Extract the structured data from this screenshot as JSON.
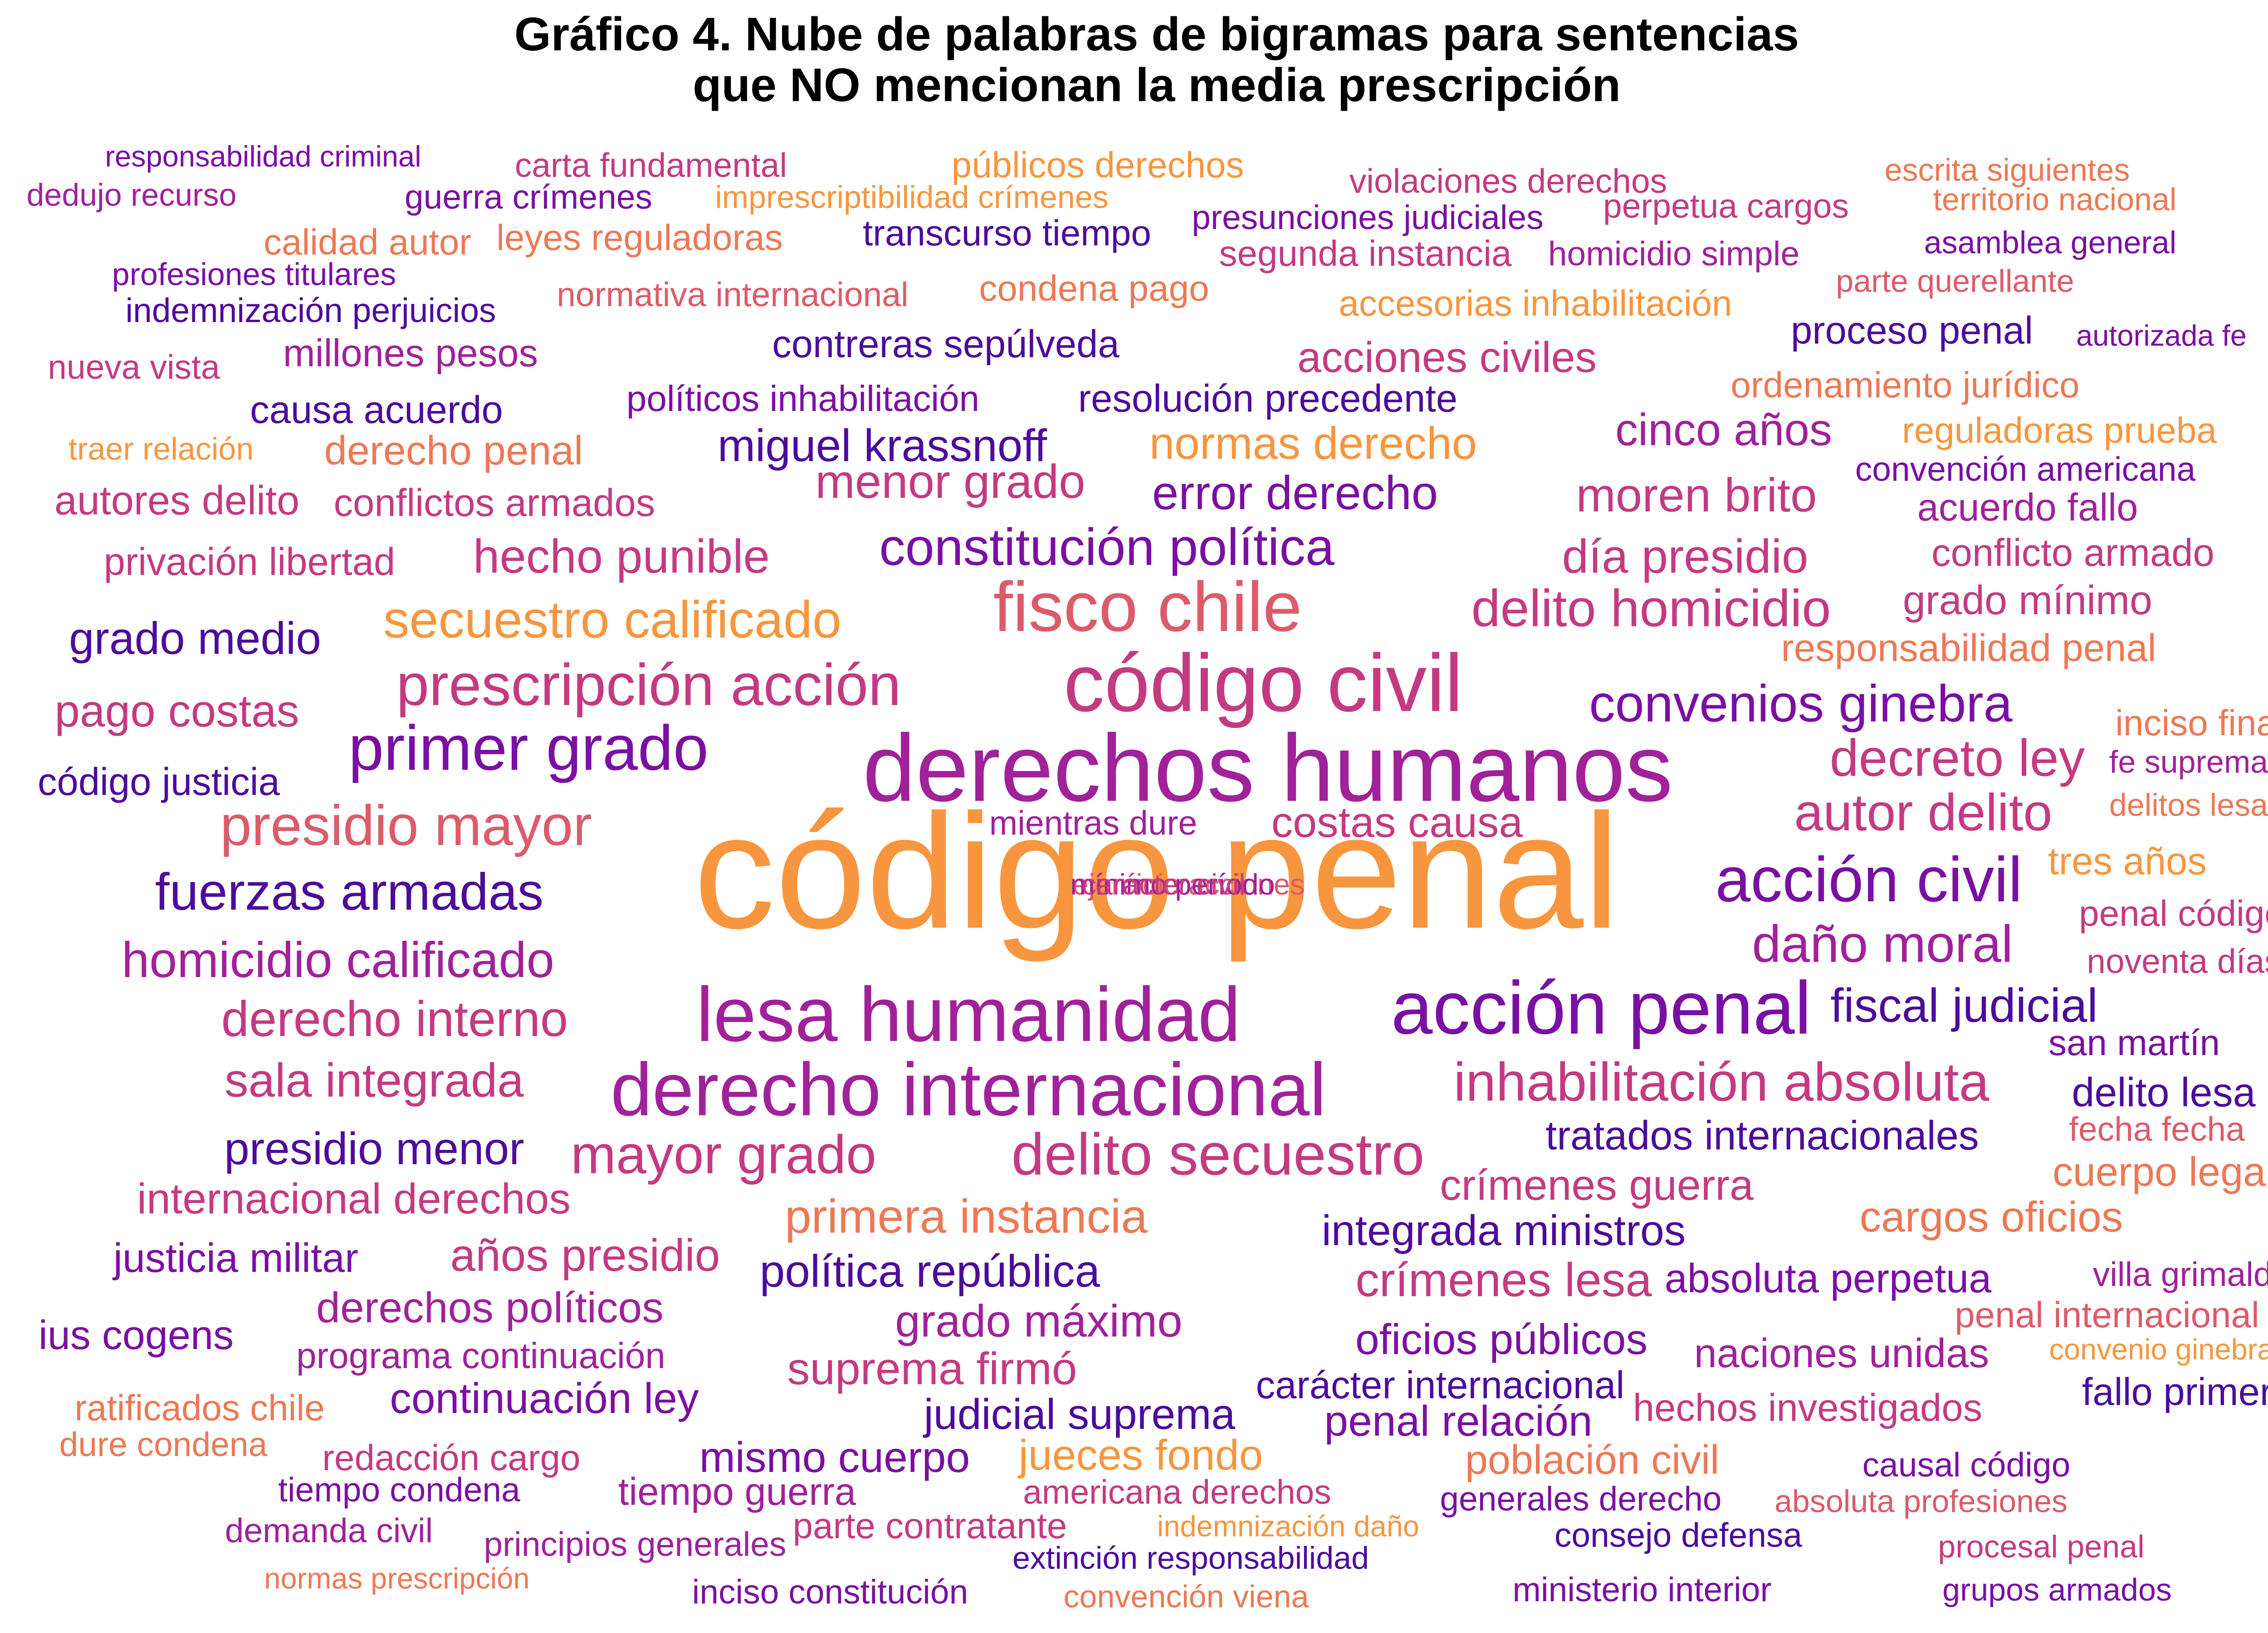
{
  "chart_data": {
    "type": "wordcloud",
    "title": [
      "Gráfico 4. Nube de palabras de bigramas para sentencias",
      "que NO mencionan la media prescripción"
    ],
    "colors": {
      "purple": "#4b0c9b",
      "violet": "#7a0fa3",
      "magenta": "#a0219a",
      "pink": "#c43a80",
      "rose": "#dc5b6a",
      "salmon": "#ec7954",
      "orange": "#f7963e",
      "title": "#000000",
      "background": "#ffffff"
    },
    "words": [
      {
        "text": "código penal",
        "c": "orange"
      },
      {
        "text": "derechos humanos",
        "c": "magenta"
      },
      {
        "text": "código civil",
        "c": "pink"
      },
      {
        "text": "lesa humanidad",
        "c": "magenta"
      },
      {
        "text": "acción penal",
        "c": "violet"
      },
      {
        "text": "derecho internacional",
        "c": "magenta"
      },
      {
        "text": "fisco chile",
        "c": "rose"
      },
      {
        "text": "prescripción acción",
        "c": "pink"
      },
      {
        "text": "primer grado",
        "c": "violet"
      },
      {
        "text": "presidio mayor",
        "c": "rose"
      },
      {
        "text": "delito secuestro",
        "c": "pink"
      },
      {
        "text": "acción civil",
        "c": "violet"
      },
      {
        "text": "mayor grado",
        "c": "pink"
      },
      {
        "text": "secuestro calificado",
        "c": "orange"
      },
      {
        "text": "inhabilitación absoluta",
        "c": "pink"
      },
      {
        "text": "fuerzas armadas",
        "c": "purple"
      },
      {
        "text": "constitución política",
        "c": "violet"
      },
      {
        "text": "delito homicidio",
        "c": "pink"
      },
      {
        "text": "convenios ginebra",
        "c": "violet"
      },
      {
        "text": "daño moral",
        "c": "magenta"
      },
      {
        "text": "decreto ley",
        "c": "pink"
      },
      {
        "text": "autor delito",
        "c": "pink"
      },
      {
        "text": "homicidio calificado",
        "c": "magenta"
      },
      {
        "text": "derecho interno",
        "c": "pink"
      },
      {
        "text": "primera instancia",
        "c": "salmon"
      },
      {
        "text": "error derecho",
        "c": "violet"
      },
      {
        "text": "moren brito",
        "c": "pink"
      },
      {
        "text": "día presidio",
        "c": "pink"
      },
      {
        "text": "menor grado",
        "c": "pink"
      },
      {
        "text": "hecho punible",
        "c": "pink"
      },
      {
        "text": "sala integrada",
        "c": "pink"
      },
      {
        "text": "presidio menor",
        "c": "purple"
      },
      {
        "text": "fiscal judicial",
        "c": "purple"
      },
      {
        "text": "política república",
        "c": "purple"
      },
      {
        "text": "integrada ministros",
        "c": "purple"
      },
      {
        "text": "crímenes lesa",
        "c": "pink"
      },
      {
        "text": "costas causa",
        "c": "pink"
      },
      {
        "text": "normas derecho",
        "c": "orange"
      },
      {
        "text": "miguel krassnoff",
        "c": "purple"
      },
      {
        "text": "cinco años",
        "c": "magenta"
      },
      {
        "text": "grado máximo",
        "c": "magenta"
      },
      {
        "text": "tratados internacionales",
        "c": "purple"
      },
      {
        "text": "crímenes guerra",
        "c": "pink"
      },
      {
        "text": "cargos oficios",
        "c": "salmon"
      },
      {
        "text": "pago costas",
        "c": "pink"
      },
      {
        "text": "grado medio",
        "c": "purple"
      },
      {
        "text": "internacional derechos",
        "c": "pink"
      },
      {
        "text": "años presidio",
        "c": "pink"
      },
      {
        "text": "justicia militar",
        "c": "violet"
      },
      {
        "text": "suprema firmó",
        "c": "pink"
      },
      {
        "text": "oficios públicos",
        "c": "violet"
      },
      {
        "text": "absoluta perpetua",
        "c": "violet"
      },
      {
        "text": "naciones unidas",
        "c": "magenta"
      },
      {
        "text": "cuerpo legal",
        "c": "salmon"
      },
      {
        "text": "delito lesa",
        "c": "purple"
      },
      {
        "text": "san martín",
        "c": "violet"
      },
      {
        "text": "grado mínimo",
        "c": "pink"
      },
      {
        "text": "responsabilidad penal",
        "c": "salmon"
      },
      {
        "text": "conflicto armado",
        "c": "pink"
      },
      {
        "text": "acuerdo fallo",
        "c": "magenta"
      },
      {
        "text": "convención americana",
        "c": "violet"
      },
      {
        "text": "acciones civiles",
        "c": "pink"
      },
      {
        "text": "resolución precedente",
        "c": "purple"
      },
      {
        "text": "políticos inhabilitación",
        "c": "violet"
      },
      {
        "text": "derecho penal",
        "c": "salmon"
      },
      {
        "text": "conflictos armados",
        "c": "pink"
      },
      {
        "text": "autores delito",
        "c": "pink"
      },
      {
        "text": "privación libertad",
        "c": "pink"
      },
      {
        "text": "causa acuerdo",
        "c": "purple"
      },
      {
        "text": "código justicia",
        "c": "purple"
      },
      {
        "text": "mientras dure",
        "c": "magenta"
      },
      {
        "text": "derechos políticos",
        "c": "magenta"
      },
      {
        "text": "programa continuación",
        "c": "magenta"
      },
      {
        "text": "continuación ley",
        "c": "violet"
      },
      {
        "text": "judicial suprema",
        "c": "purple"
      },
      {
        "text": "mismo cuerpo",
        "c": "violet"
      },
      {
        "text": "jueces fondo",
        "c": "orange"
      },
      {
        "text": "carácter internacional",
        "c": "purple"
      },
      {
        "text": "penal relación",
        "c": "violet"
      },
      {
        "text": "hechos investigados",
        "c": "pink"
      },
      {
        "text": "población civil",
        "c": "salmon"
      },
      {
        "text": "fallo primer",
        "c": "purple"
      },
      {
        "text": "villa grimaldi",
        "c": "magenta"
      },
      {
        "text": "penal internacional",
        "c": "rose"
      },
      {
        "text": "convenio ginebra",
        "c": "orange"
      },
      {
        "text": "fecha fecha",
        "c": "rose"
      },
      {
        "text": "noventa días",
        "c": "pink"
      },
      {
        "text": "penal código",
        "c": "pink"
      },
      {
        "text": "tres años",
        "c": "orange"
      },
      {
        "text": "delitos lesa",
        "c": "salmon"
      },
      {
        "text": "fe suprema",
        "c": "magenta"
      },
      {
        "text": "inciso final",
        "c": "salmon"
      },
      {
        "text": "ius cogens",
        "c": "violet"
      },
      {
        "text": "ratificados chile",
        "c": "salmon"
      },
      {
        "text": "dure condena",
        "c": "salmon"
      },
      {
        "text": "redacción cargo",
        "c": "pink"
      },
      {
        "text": "tiempo condena",
        "c": "violet"
      },
      {
        "text": "tiempo guerra",
        "c": "magenta"
      },
      {
        "text": "americana derechos",
        "c": "pink"
      },
      {
        "text": "generales derecho",
        "c": "violet"
      },
      {
        "text": "causal código",
        "c": "violet"
      },
      {
        "text": "absoluta profesiones",
        "c": "rose"
      },
      {
        "text": "demanda civil",
        "c": "magenta"
      },
      {
        "text": "principios generales",
        "c": "magenta"
      },
      {
        "text": "parte contratante",
        "c": "pink"
      },
      {
        "text": "indemnización daño",
        "c": "orange"
      },
      {
        "text": "consejo defensa",
        "c": "purple"
      },
      {
        "text": "procesal penal",
        "c": "pink"
      },
      {
        "text": "extinción responsabilidad",
        "c": "purple"
      },
      {
        "text": "normas prescripción",
        "c": "salmon"
      },
      {
        "text": "inciso constitución",
        "c": "violet"
      },
      {
        "text": "convención viena",
        "c": "salmon"
      },
      {
        "text": "ministerio interior",
        "c": "violet"
      },
      {
        "text": "grupos armados",
        "c": "violet"
      },
      {
        "text": "responsabilidad criminal",
        "c": "violet"
      },
      {
        "text": "carta fundamental",
        "c": "pink"
      },
      {
        "text": "públicos derechos",
        "c": "orange"
      },
      {
        "text": "violaciones derechos",
        "c": "pink"
      },
      {
        "text": "escrita siguientes",
        "c": "salmon"
      },
      {
        "text": "dedujo recurso",
        "c": "magenta"
      },
      {
        "text": "guerra crímenes",
        "c": "violet"
      },
      {
        "text": "imprescriptibilidad crímenes",
        "c": "orange"
      },
      {
        "text": "perpetua cargos",
        "c": "pink"
      },
      {
        "text": "territorio nacional",
        "c": "salmon"
      },
      {
        "text": "calidad autor",
        "c": "salmon"
      },
      {
        "text": "leyes reguladoras",
        "c": "salmon"
      },
      {
        "text": "transcurso tiempo",
        "c": "purple"
      },
      {
        "text": "presunciones judiciales",
        "c": "violet"
      },
      {
        "text": "asamblea general",
        "c": "violet"
      },
      {
        "text": "segunda instancia",
        "c": "pink"
      },
      {
        "text": "homicidio simple",
        "c": "magenta"
      },
      {
        "text": "profesiones titulares",
        "c": "violet"
      },
      {
        "text": "parte querellante",
        "c": "rose"
      },
      {
        "text": "indemnización perjuicios",
        "c": "purple"
      },
      {
        "text": "normativa internacional",
        "c": "rose"
      },
      {
        "text": "condena pago",
        "c": "salmon"
      },
      {
        "text": "accesorias inhabilitación",
        "c": "orange"
      },
      {
        "text": "proceso penal",
        "c": "purple"
      },
      {
        "text": "autorizada fe",
        "c": "violet"
      },
      {
        "text": "nueva vista",
        "c": "pink"
      },
      {
        "text": "millones pesos",
        "c": "magenta"
      },
      {
        "text": "contreras sepúlveda",
        "c": "purple"
      },
      {
        "text": "ordenamiento jurídico",
        "c": "salmon"
      },
      {
        "text": "traer relación",
        "c": "orange"
      },
      {
        "text": "reguladoras prueba",
        "c": "orange"
      },
      {
        "text": "ejercicio acciones",
        "c": "rose"
      },
      {
        "text": "mínimo período",
        "c": "magenta"
      },
      {
        "text": "carácter civil",
        "c": "pink"
      }
    ]
  }
}
